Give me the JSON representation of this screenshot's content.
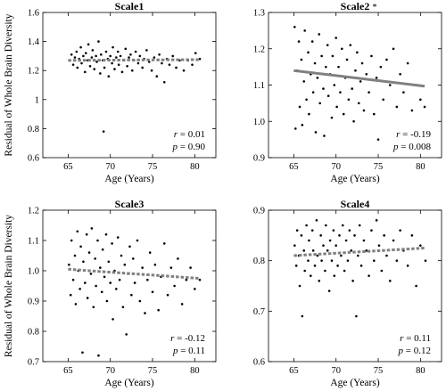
{
  "chart_data": [
    {
      "type": "scatter",
      "title": "Scale1",
      "xlabel": "Age (Years)",
      "ylabel": "Residual of Whole Brain Diversity",
      "xlim": [
        62,
        82.5
      ],
      "ylim": [
        0.6,
        1.6
      ],
      "xticks": [
        65,
        70,
        75,
        80
      ],
      "yticks": [
        0.6,
        0.8,
        1.0,
        1.2,
        1.4,
        1.6
      ],
      "ytick_labels": [
        "0.6",
        "0.8",
        "1",
        "1.2",
        "1.4",
        "1.6"
      ],
      "grid": false,
      "points": [
        [
          65.2,
          1.27
        ],
        [
          65.4,
          1.31
        ],
        [
          65.6,
          1.24
        ],
        [
          65.8,
          1.29
        ],
        [
          66.0,
          1.33
        ],
        [
          66.1,
          1.22
        ],
        [
          66.3,
          1.28
        ],
        [
          66.5,
          1.36
        ],
        [
          66.6,
          1.25
        ],
        [
          66.8,
          1.3
        ],
        [
          67.0,
          1.19
        ],
        [
          67.1,
          1.32
        ],
        [
          67.3,
          1.27
        ],
        [
          67.4,
          1.38
        ],
        [
          67.6,
          1.23
        ],
        [
          67.8,
          1.29
        ],
        [
          67.9,
          1.34
        ],
        [
          68.1,
          1.21
        ],
        [
          68.3,
          1.3
        ],
        [
          68.4,
          1.26
        ],
        [
          68.6,
          1.4
        ],
        [
          68.8,
          1.18
        ],
        [
          68.9,
          1.31
        ],
        [
          69.1,
          1.27
        ],
        [
          69.2,
          0.78
        ],
        [
          69.3,
          1.22
        ],
        [
          69.5,
          1.33
        ],
        [
          69.7,
          1.28
        ],
        [
          69.8,
          1.16
        ],
        [
          70.0,
          1.3
        ],
        [
          70.2,
          1.25
        ],
        [
          70.3,
          1.36
        ],
        [
          70.5,
          1.21
        ],
        [
          70.7,
          1.29
        ],
        [
          70.9,
          1.33
        ],
        [
          71.0,
          1.24
        ],
        [
          71.2,
          1.3
        ],
        [
          71.4,
          1.19
        ],
        [
          71.6,
          1.27
        ],
        [
          71.8,
          1.35
        ],
        [
          72.0,
          1.23
        ],
        [
          72.2,
          1.29
        ],
        [
          72.4,
          1.31
        ],
        [
          72.6,
          1.2
        ],
        [
          72.8,
          1.27
        ],
        [
          73.0,
          1.33
        ],
        [
          73.3,
          1.25
        ],
        [
          73.5,
          1.3
        ],
        [
          73.8,
          1.22
        ],
        [
          74.0,
          1.28
        ],
        [
          74.3,
          1.34
        ],
        [
          74.6,
          1.26
        ],
        [
          74.9,
          1.2
        ],
        [
          75.2,
          1.29
        ],
        [
          75.5,
          1.16
        ],
        [
          75.8,
          1.31
        ],
        [
          76.1,
          1.25
        ],
        [
          76.4,
          1.12
        ],
        [
          76.7,
          1.28
        ],
        [
          77.0,
          1.24
        ],
        [
          77.4,
          1.3
        ],
        [
          77.8,
          1.22
        ],
        [
          78.2,
          1.27
        ],
        [
          78.7,
          1.2
        ],
        [
          79.2,
          1.27
        ],
        [
          79.7,
          1.24
        ],
        [
          80.1,
          1.32
        ],
        [
          80.6,
          1.28
        ]
      ],
      "fit": {
        "x": [
          65,
          80.5
        ],
        "y": [
          1.27,
          1.275
        ],
        "style": "dashed"
      },
      "stats": {
        "r": "0.01",
        "p": "0.90"
      },
      "significant": false
    },
    {
      "type": "scatter",
      "title": "Scale2",
      "title_mark": "*",
      "xlabel": "Age (Years)",
      "ylabel": "",
      "xlim": [
        62,
        82.5
      ],
      "ylim": [
        0.9,
        1.3
      ],
      "xticks": [
        65,
        70,
        75,
        80
      ],
      "yticks": [
        0.9,
        1.0,
        1.1,
        1.2,
        1.3
      ],
      "ytick_labels": [
        "0.9",
        "1.0",
        "1.1",
        "1.2",
        "1.3"
      ],
      "grid": false,
      "points": [
        [
          65.1,
          1.26
        ],
        [
          65.2,
          0.98
        ],
        [
          65.4,
          1.14
        ],
        [
          65.6,
          1.22
        ],
        [
          65.7,
          1.04
        ],
        [
          65.9,
          1.17
        ],
        [
          66.0,
          0.99
        ],
        [
          66.2,
          1.11
        ],
        [
          66.3,
          1.25
        ],
        [
          66.5,
          1.06
        ],
        [
          66.7,
          1.19
        ],
        [
          66.8,
          1.02
        ],
        [
          67.0,
          1.13
        ],
        [
          67.2,
          1.22
        ],
        [
          67.3,
          1.08
        ],
        [
          67.5,
          1.16
        ],
        [
          67.6,
          0.97
        ],
        [
          67.8,
          1.12
        ],
        [
          68.0,
          1.24
        ],
        [
          68.1,
          1.05
        ],
        [
          68.3,
          1.18
        ],
        [
          68.5,
          1.09
        ],
        [
          68.6,
          0.96
        ],
        [
          68.8,
          1.15
        ],
        [
          69.0,
          1.21
        ],
        [
          69.1,
          1.07
        ],
        [
          69.3,
          1.13
        ],
        [
          69.5,
          1.01
        ],
        [
          69.6,
          1.18
        ],
        [
          69.8,
          1.1
        ],
        [
          70.0,
          1.23
        ],
        [
          70.1,
          1.04
        ],
        [
          70.3,
          1.15
        ],
        [
          70.5,
          1.08
        ],
        [
          70.7,
          1.2
        ],
        [
          70.9,
          1.02
        ],
        [
          71.1,
          1.12
        ],
        [
          71.3,
          1.17
        ],
        [
          71.5,
          1.06
        ],
        [
          71.7,
          1.21
        ],
        [
          71.9,
          1.09
        ],
        [
          72.1,
          1.0
        ],
        [
          72.3,
          1.14
        ],
        [
          72.5,
          1.19
        ],
        [
          72.7,
          1.05
        ],
        [
          72.9,
          1.11
        ],
        [
          73.1,
          1.16
        ],
        [
          73.3,
          1.03
        ],
        [
          73.6,
          1.13
        ],
        [
          73.9,
          1.08
        ],
        [
          74.2,
          1.18
        ],
        [
          74.5,
          1.02
        ],
        [
          74.8,
          1.12
        ],
        [
          75.0,
          0.95
        ],
        [
          75.3,
          1.15
        ],
        [
          75.6,
          1.06
        ],
        [
          76.0,
          1.17
        ],
        [
          76.4,
          1.1
        ],
        [
          76.8,
          1.2
        ],
        [
          77.2,
          1.04
        ],
        [
          77.6,
          1.13
        ],
        [
          78.0,
          1.08
        ],
        [
          78.5,
          1.16
        ],
        [
          79.0,
          1.03
        ],
        [
          79.5,
          1.1
        ],
        [
          80.0,
          1.06
        ],
        [
          80.5,
          1.04
        ]
      ],
      "fit": {
        "x": [
          65,
          80.5
        ],
        "y": [
          1.14,
          1.097
        ],
        "style": "solid"
      },
      "stats": {
        "r": "-0.19",
        "p": "0.008"
      },
      "significant": true
    },
    {
      "type": "scatter",
      "title": "Scale3",
      "xlabel": "Age (Years)",
      "ylabel": "Residual of Whole Brain Diversity",
      "xlim": [
        62,
        82.5
      ],
      "ylim": [
        0.7,
        1.2
      ],
      "xticks": [
        65,
        70,
        75,
        80
      ],
      "yticks": [
        0.7,
        0.8,
        0.9,
        1.0,
        1.1,
        1.2
      ],
      "ytick_labels": [
        "0.7",
        "0.8",
        "0.9",
        "1.0",
        "1.1",
        "1.2"
      ],
      "grid": false,
      "points": [
        [
          65.1,
          1.02
        ],
        [
          65.3,
          0.92
        ],
        [
          65.4,
          1.1
        ],
        [
          65.6,
          0.97
        ],
        [
          65.8,
          1.05
        ],
        [
          65.9,
          0.89
        ],
        [
          66.1,
          1.13
        ],
        [
          66.2,
          1.0
        ],
        [
          66.4,
          0.94
        ],
        [
          66.5,
          1.08
        ],
        [
          66.7,
          0.73
        ],
        [
          66.8,
          1.03
        ],
        [
          67.0,
          0.96
        ],
        [
          67.2,
          1.12
        ],
        [
          67.3,
          0.91
        ],
        [
          67.5,
          1.06
        ],
        [
          67.7,
          0.99
        ],
        [
          67.8,
          1.14
        ],
        [
          68.0,
          0.88
        ],
        [
          68.2,
          1.04
        ],
        [
          68.3,
          0.95
        ],
        [
          68.5,
          1.1
        ],
        [
          68.6,
          0.72
        ],
        [
          68.8,
          1.01
        ],
        [
          69.0,
          0.93
        ],
        [
          69.1,
          1.07
        ],
        [
          69.3,
          0.98
        ],
        [
          69.5,
          1.12
        ],
        [
          69.6,
          0.9
        ],
        [
          69.8,
          1.03
        ],
        [
          70.0,
          0.96
        ],
        [
          70.2,
          1.09
        ],
        [
          70.3,
          0.84
        ],
        [
          70.5,
          1.0
        ],
        [
          70.7,
          0.94
        ],
        [
          70.9,
          1.11
        ],
        [
          71.1,
          0.97
        ],
        [
          71.3,
          1.05
        ],
        [
          71.5,
          0.88
        ],
        [
          71.7,
          1.02
        ],
        [
          71.9,
          0.79
        ],
        [
          72.1,
          0.99
        ],
        [
          72.3,
          1.08
        ],
        [
          72.5,
          0.92
        ],
        [
          72.7,
          1.04
        ],
        [
          72.9,
          0.96
        ],
        [
          73.2,
          1.1
        ],
        [
          73.5,
          0.9
        ],
        [
          73.8,
          1.01
        ],
        [
          74.1,
          0.86
        ],
        [
          74.4,
          0.97
        ],
        [
          74.7,
          1.06
        ],
        [
          75.0,
          0.93
        ],
        [
          75.3,
          1.02
        ],
        [
          75.7,
          0.87
        ],
        [
          76.0,
          0.98
        ],
        [
          76.4,
          1.09
        ],
        [
          76.8,
          0.92
        ],
        [
          77.2,
          1.01
        ],
        [
          77.6,
          0.95
        ],
        [
          78.0,
          1.04
        ],
        [
          78.5,
          0.89
        ],
        [
          79.0,
          0.97
        ],
        [
          79.5,
          1.01
        ],
        [
          80.0,
          0.94
        ],
        [
          80.6,
          0.97
        ]
      ],
      "fit": {
        "x": [
          65,
          80.5
        ],
        "y": [
          1.005,
          0.975
        ],
        "style": "dashed"
      },
      "stats": {
        "r": "-0.12",
        "p": "0.11"
      },
      "significant": false
    },
    {
      "type": "scatter",
      "title": "Scale4",
      "xlabel": "Age (Years)",
      "ylabel": "",
      "xlim": [
        62,
        82.5
      ],
      "ylim": [
        0.6,
        0.9
      ],
      "xticks": [
        65,
        70,
        75,
        80
      ],
      "yticks": [
        0.6,
        0.7,
        0.8,
        0.9
      ],
      "ytick_labels": [
        "0.6",
        "0.7",
        "0.8",
        "0.9"
      ],
      "grid": false,
      "points": [
        [
          65.1,
          0.83
        ],
        [
          65.3,
          0.79
        ],
        [
          65.4,
          0.86
        ],
        [
          65.6,
          0.81
        ],
        [
          65.7,
          0.75
        ],
        [
          65.9,
          0.85
        ],
        [
          66.0,
          0.69
        ],
        [
          66.2,
          0.82
        ],
        [
          66.3,
          0.78
        ],
        [
          66.5,
          0.87
        ],
        [
          66.7,
          0.8
        ],
        [
          66.8,
          0.84
        ],
        [
          67.0,
          0.77
        ],
        [
          67.2,
          0.86
        ],
        [
          67.3,
          0.82
        ],
        [
          67.5,
          0.79
        ],
        [
          67.7,
          0.88
        ],
        [
          67.8,
          0.81
        ],
        [
          68.0,
          0.76
        ],
        [
          68.2,
          0.85
        ],
        [
          68.3,
          0.8
        ],
        [
          68.5,
          0.83
        ],
        [
          68.7,
          0.78
        ],
        [
          68.8,
          0.87
        ],
        [
          69.0,
          0.82
        ],
        [
          69.2,
          0.74
        ],
        [
          69.3,
          0.84
        ],
        [
          69.5,
          0.8
        ],
        [
          69.7,
          0.86
        ],
        [
          69.8,
          0.77
        ],
        [
          70.0,
          0.83
        ],
        [
          70.2,
          0.79
        ],
        [
          70.4,
          0.85
        ],
        [
          70.6,
          0.81
        ],
        [
          70.8,
          0.87
        ],
        [
          71.0,
          0.78
        ],
        [
          71.2,
          0.84
        ],
        [
          71.4,
          0.8
        ],
        [
          71.6,
          0.86
        ],
        [
          71.8,
          0.82
        ],
        [
          72.0,
          0.76
        ],
        [
          72.2,
          0.85
        ],
        [
          72.4,
          0.69
        ],
        [
          72.6,
          0.81
        ],
        [
          72.8,
          0.87
        ],
        [
          73.0,
          0.79
        ],
        [
          73.3,
          0.84
        ],
        [
          73.6,
          0.82
        ],
        [
          73.9,
          0.77
        ],
        [
          74.2,
          0.86
        ],
        [
          74.5,
          0.8
        ],
        [
          74.8,
          0.88
        ],
        [
          75.1,
          0.83
        ],
        [
          75.4,
          0.78
        ],
        [
          75.7,
          0.85
        ],
        [
          76.0,
          0.81
        ],
        [
          76.4,
          0.76
        ],
        [
          76.8,
          0.84
        ],
        [
          77.2,
          0.8
        ],
        [
          77.6,
          0.86
        ],
        [
          78.0,
          0.82
        ],
        [
          78.5,
          0.79
        ],
        [
          79.0,
          0.85
        ],
        [
          79.5,
          0.75
        ],
        [
          80.0,
          0.83
        ],
        [
          80.6,
          0.8
        ]
      ],
      "fit": {
        "x": [
          65,
          80.5
        ],
        "y": [
          0.81,
          0.825
        ],
        "style": "dashed"
      },
      "stats": {
        "r": "0.11",
        "p": "0.12"
      },
      "significant": false
    }
  ]
}
